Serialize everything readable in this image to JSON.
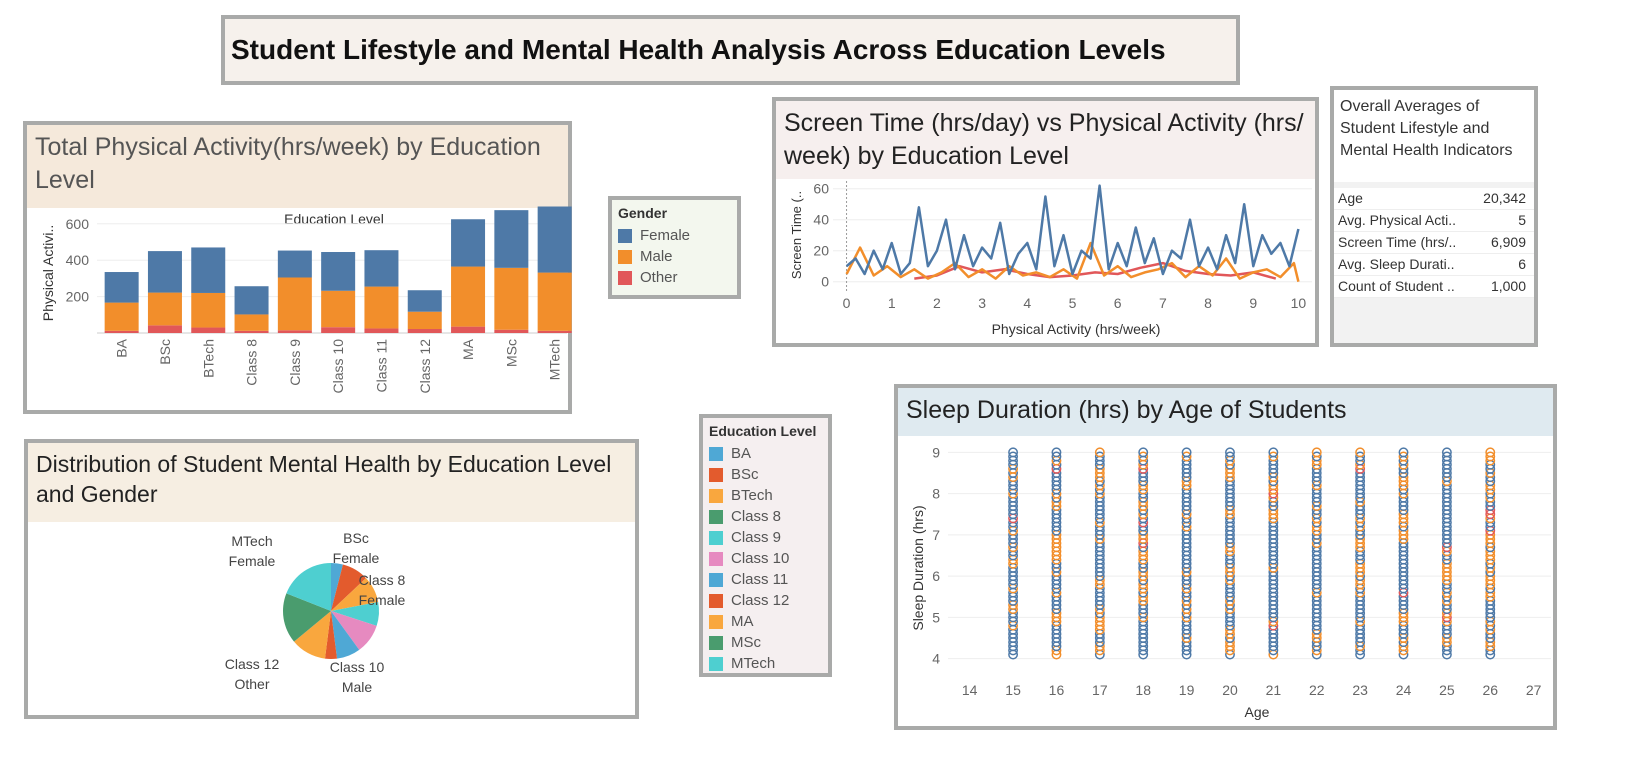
{
  "dashboard_title": "Student Lifestyle and Mental Health Analysis Across Education Levels",
  "colors": {
    "female": "#4e79a7",
    "male": "#f28e2b",
    "other": "#e15759",
    "panel_border": "#a9aaa9"
  },
  "physical_activity": {
    "title": "Total Physical Activity(hrs/week) by Education Level",
    "chart_data": {
      "type": "bar",
      "stacked": true,
      "title": "Total Physical Activity(hrs/week) by Education Level",
      "xlabel": "Education Level",
      "ylabel": "Physical Activi..",
      "categories": [
        "BA",
        "BSc",
        "BTech",
        "Class 8",
        "Class 9",
        "Class 10",
        "Class 11",
        "Class 12",
        "MA",
        "MSc",
        "MTech"
      ],
      "series": [
        {
          "name": "Other",
          "color": "#e15759",
          "values": [
            12,
            42,
            30,
            12,
            15,
            32,
            25,
            22,
            35,
            18,
            12
          ]
        },
        {
          "name": "Male",
          "color": "#f28e2b",
          "values": [
            155,
            180,
            190,
            90,
            290,
            200,
            230,
            95,
            330,
            340,
            320
          ]
        },
        {
          "name": "Female",
          "color": "#4e79a7",
          "values": [
            168,
            228,
            250,
            155,
            148,
            213,
            200,
            118,
            260,
            317,
            363
          ]
        }
      ],
      "yticks": [
        200,
        400,
        600
      ],
      "ylim": [
        0,
        700
      ],
      "grid": true
    }
  },
  "gender_legend": {
    "title": "Gender",
    "items": [
      {
        "label": "Female",
        "color": "#4e79a7"
      },
      {
        "label": "Male",
        "color": "#f28e2b"
      },
      {
        "label": "Other",
        "color": "#e15759"
      }
    ]
  },
  "screen_time": {
    "title": "Screen Time (hrs/day) vs Physical Activity (hrs/ week) by Education Level",
    "chart_data": {
      "type": "line",
      "xlabel": "Physical Activity (hrs/week)",
      "ylabel": "Screen Time (..",
      "xlim": [
        -0.3,
        10.3
      ],
      "ylim": [
        -6,
        65
      ],
      "xticks": [
        0,
        1,
        2,
        3,
        4,
        5,
        6,
        7,
        8,
        9,
        10
      ],
      "yticks": [
        0,
        20,
        40,
        60
      ],
      "series": [
        {
          "name": "Female",
          "color": "#4e79a7",
          "x": [
            0,
            0.2,
            0.4,
            0.6,
            0.8,
            1.0,
            1.2,
            1.4,
            1.6,
            1.8,
            2.0,
            2.2,
            2.4,
            2.6,
            2.8,
            3.0,
            3.2,
            3.4,
            3.6,
            3.8,
            4.0,
            4.2,
            4.4,
            4.6,
            4.8,
            5.0,
            5.2,
            5.4,
            5.6,
            5.8,
            6.0,
            6.2,
            6.4,
            6.6,
            6.8,
            7.0,
            7.2,
            7.4,
            7.6,
            7.8,
            8.0,
            8.2,
            8.4,
            8.6,
            8.8,
            9.0,
            9.2,
            9.4,
            9.6,
            9.8,
            10.0
          ],
          "y": [
            10,
            15,
            5,
            20,
            8,
            25,
            5,
            12,
            48,
            10,
            20,
            40,
            8,
            30,
            10,
            22,
            15,
            38,
            5,
            18,
            25,
            8,
            55,
            10,
            30,
            5,
            20,
            15,
            62,
            8,
            25,
            10,
            35,
            12,
            28,
            5,
            20,
            15,
            40,
            10,
            22,
            8,
            30,
            12,
            50,
            10,
            30,
            18,
            25,
            10,
            34
          ]
        },
        {
          "name": "Male",
          "color": "#f28e2b",
          "x": [
            0,
            0.3,
            0.6,
            0.9,
            1.2,
            1.5,
            1.8,
            2.1,
            2.4,
            2.7,
            3.0,
            3.3,
            3.6,
            3.9,
            4.2,
            4.5,
            4.8,
            5.1,
            5.4,
            5.7,
            6.0,
            6.3,
            6.6,
            6.9,
            7.2,
            7.5,
            7.8,
            8.1,
            8.4,
            8.7,
            9.0,
            9.3,
            9.6,
            9.9,
            10.0
          ],
          "y": [
            5,
            22,
            4,
            10,
            3,
            8,
            2,
            6,
            12,
            3,
            8,
            2,
            10,
            4,
            6,
            3,
            8,
            2,
            25,
            4,
            10,
            3,
            6,
            8,
            12,
            3,
            10,
            4,
            15,
            2,
            6,
            8,
            3,
            12,
            0
          ]
        },
        {
          "name": "Other",
          "color": "#e15759",
          "x": [
            1.5,
            2.0,
            2.5,
            3.0,
            3.5,
            4.0,
            4.5,
            5.0,
            5.5,
            6.0,
            6.5,
            7.0,
            7.5,
            8.0,
            8.5,
            9.0,
            9.5
          ],
          "y": [
            2,
            4,
            10,
            6,
            8,
            5,
            3,
            4,
            6,
            5,
            9,
            12,
            7,
            5,
            4,
            6,
            2
          ]
        }
      ]
    }
  },
  "overall_averages": {
    "title": "Overall Averages of Student Lifestyle and Mental Health Indicators",
    "rows": [
      {
        "label": "Age",
        "value": "20,342"
      },
      {
        "label": "Avg. Physical Acti..",
        "value": "5"
      },
      {
        "label": "Screen Time (hrs/..",
        "value": "6,909"
      },
      {
        "label": "Avg. Sleep Durati..",
        "value": "6"
      },
      {
        "label": "Count of Student ..",
        "value": "1,000"
      }
    ]
  },
  "education_legend": {
    "title": "Education Level",
    "items": [
      {
        "label": "BA",
        "color": "#4fa8d5"
      },
      {
        "label": "BSc",
        "color": "#e35b2d"
      },
      {
        "label": "BTech",
        "color": "#f9a73e"
      },
      {
        "label": "Class 8",
        "color": "#4a9c6e"
      },
      {
        "label": "Class 9",
        "color": "#4ecfd0"
      },
      {
        "label": "Class 10",
        "color": "#e68ac0"
      },
      {
        "label": "Class 11",
        "color": "#4fa8d5"
      },
      {
        "label": "Class 12",
        "color": "#e35b2d"
      },
      {
        "label": "MA",
        "color": "#f9a73e"
      },
      {
        "label": "MSc",
        "color": "#4a9c6e"
      },
      {
        "label": "MTech",
        "color": "#4ecfd0"
      }
    ]
  },
  "mental_health": {
    "title": "Distribution of Student Mental Health by Education Level and Gender",
    "chart_data": {
      "type": "pie",
      "slices": [
        {
          "label": "BA",
          "color": "#4fa8d5",
          "value": 4
        },
        {
          "label": "BSc Female",
          "color": "#e35b2d",
          "value": 9
        },
        {
          "label": "Class 8 Female",
          "color": "#f9a73e",
          "value": 9
        },
        {
          "label": "",
          "color": "#4ecfd0",
          "value": 8
        },
        {
          "label": "Class 10 Male",
          "color": "#e68ac0",
          "value": 10
        },
        {
          "label": "",
          "color": "#4fa8d5",
          "value": 8
        },
        {
          "label": "Class 12 Other",
          "color": "#e35b2d",
          "value": 4
        },
        {
          "label": "",
          "color": "#f9a73e",
          "value": 12
        },
        {
          "label": "",
          "color": "#4a9c6e",
          "value": 17
        },
        {
          "label": "MTech Female",
          "color": "#4ecfd0",
          "value": 19
        }
      ],
      "annotations": [
        {
          "line1": "MTech",
          "line2": "Female"
        },
        {
          "line1": "BSc",
          "line2": "Female"
        },
        {
          "line1": "Class 8",
          "line2": "Female"
        },
        {
          "line1": "Class 12",
          "line2": "Other"
        },
        {
          "line1": "Class 10",
          "line2": "Male"
        }
      ]
    }
  },
  "sleep": {
    "title": "Sleep Duration (hrs) by Age of Students",
    "chart_data": {
      "type": "scatter",
      "xlabel": "Age",
      "ylabel": "Sleep Duration (hrs)",
      "xlim": [
        13.5,
        27.4
      ],
      "ylim": [
        3.7,
        9.3
      ],
      "xticks": [
        14,
        15,
        16,
        17,
        18,
        19,
        20,
        21,
        22,
        23,
        24,
        25,
        26,
        27
      ],
      "yticks": [
        4,
        5,
        6,
        7,
        8,
        9
      ],
      "ages": [
        15,
        16,
        17,
        18,
        19,
        20,
        21,
        22,
        23,
        24,
        25,
        26
      ],
      "y_range": [
        4.1,
        9.0
      ],
      "series": [
        {
          "name": "Female",
          "color": "#4e79a7"
        },
        {
          "name": "Male",
          "color": "#f28e2b"
        },
        {
          "name": "Other",
          "color": "#e15759"
        }
      ]
    }
  }
}
